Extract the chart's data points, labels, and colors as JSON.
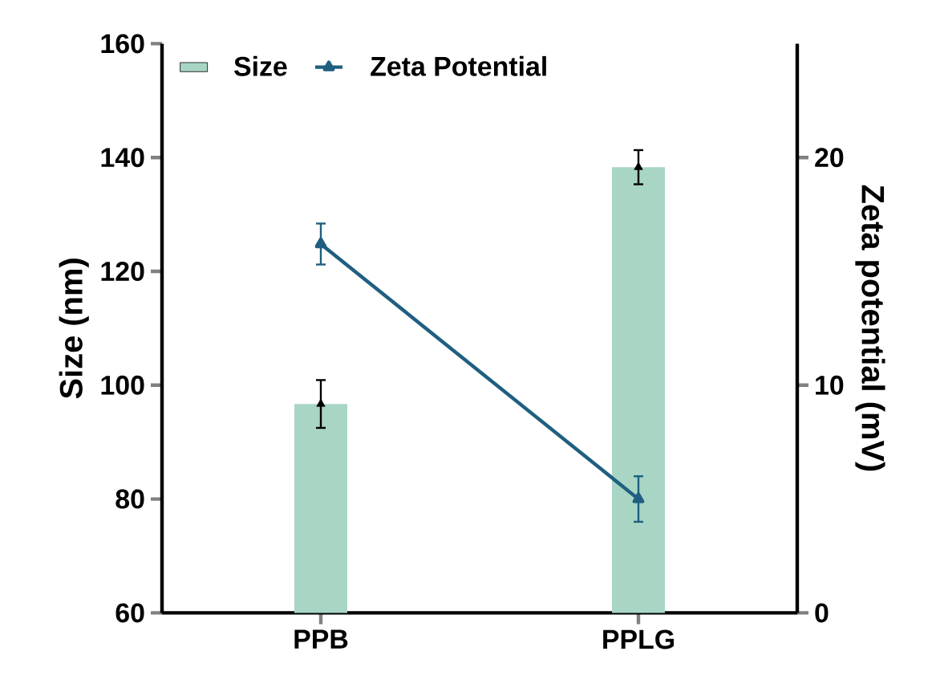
{
  "chart_data": {
    "type": "bar",
    "categories": [
      "PPB",
      "PPLG"
    ],
    "ylabel": "Size (nm)",
    "y2label": "Zeta potential (mV)",
    "ylim": [
      60,
      160
    ],
    "yticks": [
      60,
      80,
      100,
      120,
      140,
      160
    ],
    "y2lim": [
      0,
      25
    ],
    "y2ticks": [
      0,
      10,
      20
    ],
    "legend": "top left",
    "marker": "triangle",
    "series": [
      {
        "name": "Size",
        "color": "#a8d5c4",
        "values": [
          96.7,
          138.3
        ]
      },
      {
        "type": "scatter",
        "color": "#000000",
        "x": [
          "PPB",
          "PPLG"
        ],
        "values": [
          96.7,
          138.3
        ],
        "errors": [
          4.2,
          3.0
        ]
      },
      {
        "name": "Zeta Potential",
        "type": "line",
        "axis": "y2",
        "color": "#1f5f80",
        "values": [
          16.2,
          5.0
        ],
        "errors": [
          0.9,
          1.0
        ]
      }
    ]
  }
}
